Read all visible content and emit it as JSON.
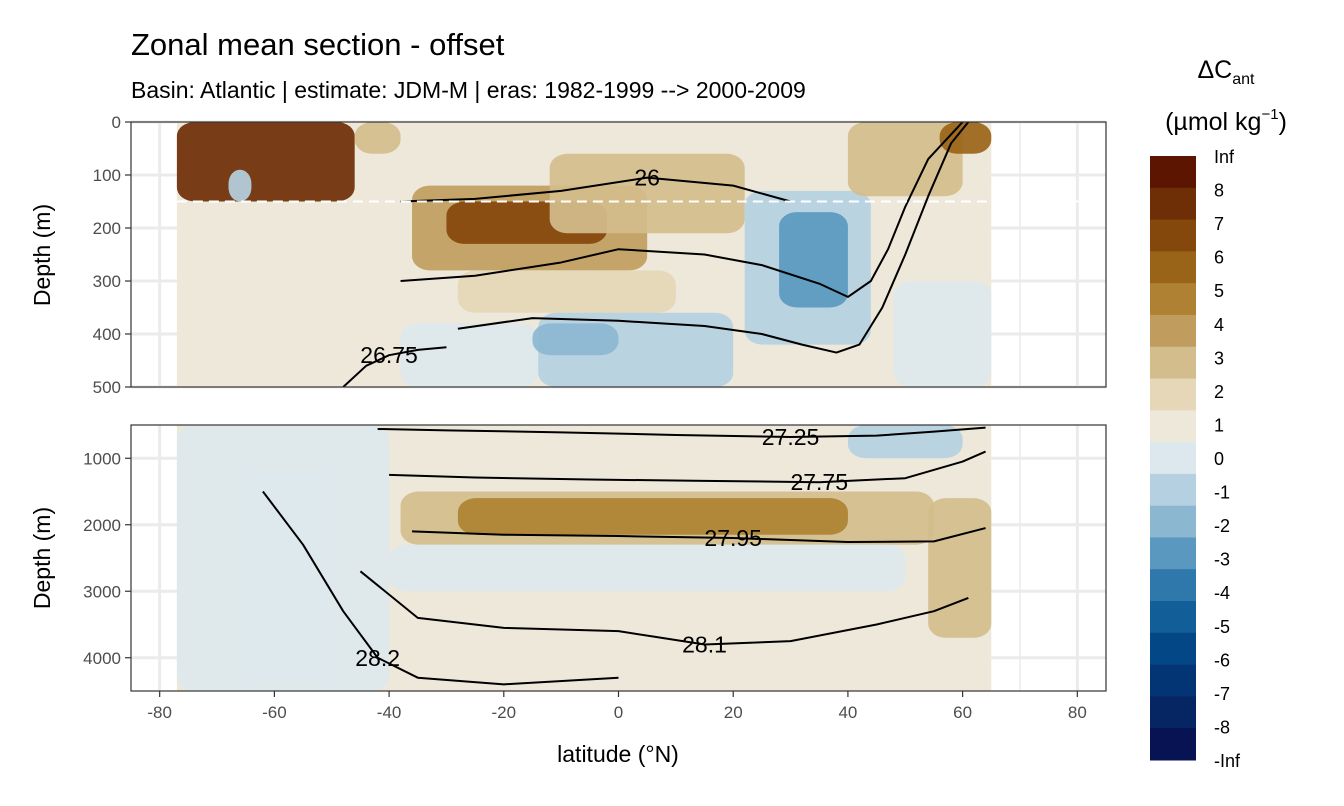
{
  "chart_data": {
    "type": "heatmap",
    "title": "Zonal mean section - offset",
    "subtitle": "Basin: Atlantic | estimate: JDM-M | eras: 1982-1999 --> 2000-2009",
    "xlabel": "latitude (°N)",
    "ylabel": "Depth (m)",
    "xlim": [
      -85,
      85
    ],
    "x_ticks": [
      -80,
      -60,
      -40,
      -20,
      0,
      20,
      40,
      60,
      80
    ],
    "x_tick_labels": [
      "-80",
      "-60",
      "-40",
      "-20",
      "0",
      "20",
      "40",
      "60",
      "80"
    ],
    "panels": [
      {
        "name": "upper",
        "ylim": [
          0,
          500
        ],
        "y_ticks": [
          0,
          100,
          200,
          300,
          400,
          500
        ],
        "y_tick_labels": [
          "0",
          "100",
          "200",
          "300",
          "400",
          "500"
        ],
        "reference_depth": 150
      },
      {
        "name": "lower",
        "ylim": [
          500,
          4500
        ],
        "y_ticks": [
          1000,
          2000,
          3000,
          4000
        ],
        "y_tick_labels": [
          "1000",
          "2000",
          "3000",
          "4000"
        ]
      }
    ],
    "data_extent": [
      -77,
      65
    ],
    "legend": {
      "title_main": "ΔC",
      "title_sub": "ant",
      "unit_open": "(µmol kg",
      "unit_sup": "−1",
      "unit_close": ")",
      "labels": [
        "Inf",
        "8",
        "7",
        "6",
        "5",
        "4",
        "3",
        "2",
        "1",
        "0",
        "-1",
        "-2",
        "-3",
        "-4",
        "-5",
        "-6",
        "-7",
        "-8",
        "-Inf"
      ],
      "colors": [
        "#5c1500",
        "#6e2e06",
        "#84470c",
        "#9a6418",
        "#ae8232",
        "#c09d5e",
        "#d3bd8c",
        "#e5d7b7",
        "#eee8da",
        "#dde8ee",
        "#b5d0e1",
        "#8cb7d1",
        "#5a98bf",
        "#2e78ab",
        "#125e98",
        "#044786",
        "#033575",
        "#062563",
        "#071352"
      ]
    },
    "upper_fields": [
      {
        "x0": -77,
        "x1": -46,
        "y0": 0,
        "y1": 150,
        "v": 8
      },
      {
        "x0": -68,
        "x1": -64,
        "y0": 90,
        "y1": 150,
        "v": -1
      },
      {
        "x0": -46,
        "x1": -38,
        "y0": 0,
        "y1": 60,
        "v": 3
      },
      {
        "x0": -36,
        "x1": 5,
        "y0": 120,
        "y1": 280,
        "v": 4
      },
      {
        "x0": -30,
        "x1": -2,
        "y0": 150,
        "y1": 230,
        "v": 7
      },
      {
        "x0": -12,
        "x1": 22,
        "y0": 60,
        "y1": 210,
        "v": 3
      },
      {
        "x0": -28,
        "x1": 10,
        "y0": 280,
        "y1": 360,
        "v": 2
      },
      {
        "x0": -38,
        "x1": -14,
        "y0": 380,
        "y1": 500,
        "v": 0
      },
      {
        "x0": -14,
        "x1": 20,
        "y0": 360,
        "y1": 500,
        "v": -1
      },
      {
        "x0": -15,
        "x1": 0,
        "y0": 380,
        "y1": 440,
        "v": -2
      },
      {
        "x0": 22,
        "x1": 44,
        "y0": 130,
        "y1": 420,
        "v": -1
      },
      {
        "x0": 28,
        "x1": 40,
        "y0": 170,
        "y1": 350,
        "v": -3
      },
      {
        "x0": 40,
        "x1": 60,
        "y0": 0,
        "y1": 140,
        "v": 3
      },
      {
        "x0": 56,
        "x1": 65,
        "y0": 0,
        "y1": 60,
        "v": 6
      },
      {
        "x0": 48,
        "x1": 65,
        "y0": 300,
        "y1": 500,
        "v": 0
      }
    ],
    "lower_fields": [
      {
        "x0": -77,
        "x1": -40,
        "y0": 500,
        "y1": 4500,
        "v": 0
      },
      {
        "x0": -66,
        "x1": -50,
        "y0": 1200,
        "y1": 4300,
        "v": 0
      },
      {
        "x0": -38,
        "x1": 55,
        "y0": 1500,
        "y1": 2300,
        "v": 3
      },
      {
        "x0": -28,
        "x1": 40,
        "y0": 1600,
        "y1": 2150,
        "v": 5
      },
      {
        "x0": -40,
        "x1": 50,
        "y0": 2300,
        "y1": 3000,
        "v": 0
      },
      {
        "x0": 40,
        "x1": 60,
        "y0": 500,
        "y1": 1000,
        "v": -1
      },
      {
        "x0": 54,
        "x1": 65,
        "y0": 1600,
        "y1": 3700,
        "v": 3
      }
    ],
    "upper_contours": [
      {
        "label": "26",
        "points": [
          [
            -38,
            150
          ],
          [
            -25,
            145
          ],
          [
            -10,
            130
          ],
          [
            5,
            105
          ],
          [
            20,
            120
          ],
          [
            30,
            150
          ]
        ]
      },
      {
        "label": "",
        "points": [
          [
            -38,
            300
          ],
          [
            -25,
            290
          ],
          [
            -10,
            265
          ],
          [
            0,
            240
          ],
          [
            15,
            250
          ],
          [
            25,
            270
          ],
          [
            35,
            305
          ],
          [
            40,
            330
          ],
          [
            44,
            300
          ],
          [
            47,
            240
          ],
          [
            50,
            160
          ],
          [
            54,
            70
          ],
          [
            60,
            0
          ]
        ]
      },
      {
        "label": "",
        "points": [
          [
            -28,
            390
          ],
          [
            -15,
            370
          ],
          [
            0,
            375
          ],
          [
            15,
            385
          ],
          [
            25,
            400
          ],
          [
            32,
            420
          ],
          [
            38,
            435
          ],
          [
            42,
            420
          ],
          [
            46,
            350
          ],
          [
            50,
            250
          ],
          [
            54,
            140
          ],
          [
            58,
            40
          ],
          [
            61,
            0
          ]
        ]
      },
      {
        "label": "26.75",
        "points": [
          [
            -48,
            500
          ],
          [
            -44,
            460
          ],
          [
            -40,
            440
          ],
          [
            -35,
            430
          ],
          [
            -30,
            425
          ]
        ]
      }
    ],
    "lower_contours": [
      {
        "label": "27.25",
        "points": [
          [
            -42,
            560
          ],
          [
            -30,
            580
          ],
          [
            -10,
            610
          ],
          [
            10,
            650
          ],
          [
            30,
            680
          ],
          [
            45,
            660
          ],
          [
            55,
            600
          ],
          [
            64,
            540
          ]
        ]
      },
      {
        "label": "27.75",
        "points": [
          [
            -40,
            1250
          ],
          [
            -25,
            1290
          ],
          [
            -5,
            1320
          ],
          [
            15,
            1340
          ],
          [
            35,
            1360
          ],
          [
            50,
            1300
          ],
          [
            60,
            1050
          ],
          [
            64,
            900
          ]
        ]
      },
      {
        "label": "27.95",
        "points": [
          [
            -36,
            2100
          ],
          [
            -20,
            2150
          ],
          [
            0,
            2170
          ],
          [
            20,
            2200
          ],
          [
            40,
            2260
          ],
          [
            55,
            2250
          ],
          [
            64,
            2050
          ]
        ]
      },
      {
        "label": "28.1",
        "points": [
          [
            -45,
            2700
          ],
          [
            -35,
            3400
          ],
          [
            -20,
            3550
          ],
          [
            0,
            3600
          ],
          [
            15,
            3800
          ],
          [
            30,
            3750
          ],
          [
            45,
            3500
          ],
          [
            55,
            3300
          ],
          [
            61,
            3100
          ]
        ]
      },
      {
        "label": "28.2",
        "points": [
          [
            -62,
            1500
          ],
          [
            -55,
            2300
          ],
          [
            -48,
            3300
          ],
          [
            -42,
            4000
          ],
          [
            -35,
            4300
          ],
          [
            -20,
            4400
          ],
          [
            0,
            4300
          ]
        ]
      }
    ]
  }
}
